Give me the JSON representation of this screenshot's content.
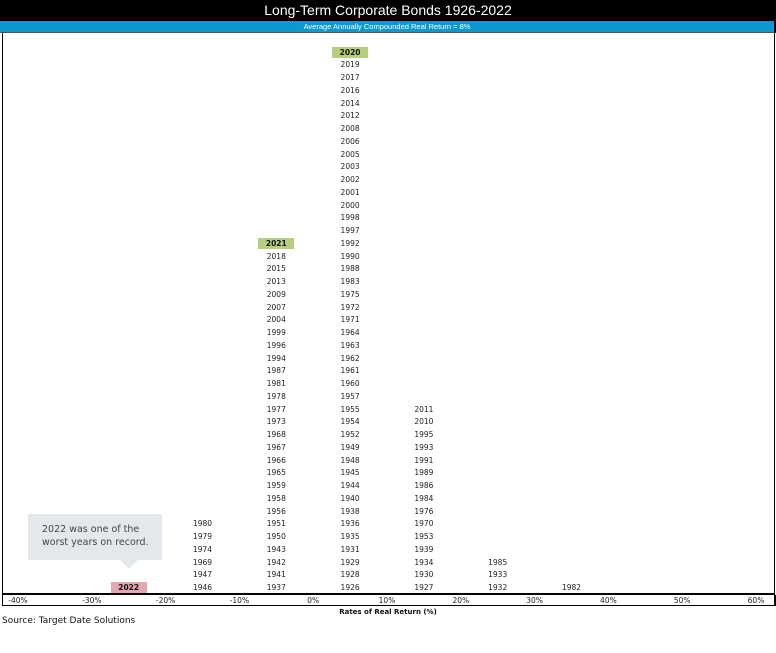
{
  "header": {
    "title": "Long-Term Corporate Bonds 1926-2022",
    "subtitle": "Average Annually Compounded Real Return = 8%"
  },
  "axis": {
    "ticks": [
      "-40%",
      "-30%",
      "-20%",
      "-10%",
      "0%",
      "10%",
      "20%",
      "30%",
      "40%",
      "50%",
      "60%"
    ],
    "title": "Rates of Real Return (%)"
  },
  "callout": {
    "line1": "2022 was one of the",
    "line2": "worst years on record."
  },
  "source": "Source: Target Date Solutions",
  "colors": {
    "title_bg": "#000000",
    "subtitle_bg": "#0a9ad0",
    "highlight_green": "#b5cf7e",
    "highlight_red": "#e4a8b0",
    "callout_bg": "#e3e8ec"
  },
  "chart_data": {
    "type": "histogram-stack",
    "title": "Long-Term Corporate Bonds 1926-2022",
    "subtitle": "Average Annually Compounded Real Return = 8%",
    "xlabel": "Rates of Real Return (%)",
    "ylabel": "",
    "xlim": [
      -40,
      60
    ],
    "bins": [
      {
        "range": "-30% to -20%",
        "count": 1,
        "years": [
          "2022"
        ],
        "highlight": {
          "2022": "red"
        }
      },
      {
        "range": "-20% to -10%",
        "count": 6,
        "years": [
          "1946",
          "1947",
          "1969",
          "1974",
          "1979",
          "1980"
        ]
      },
      {
        "range": "-10% to 0%",
        "count": 28,
        "years": [
          "1937",
          "1941",
          "1942",
          "1943",
          "1950",
          "1951",
          "1956",
          "1958",
          "1959",
          "1965",
          "1966",
          "1967",
          "1968",
          "1973",
          "1977",
          "1978",
          "1981",
          "1987",
          "1994",
          "1996",
          "1999",
          "2004",
          "2007",
          "2009",
          "2013",
          "2015",
          "2018",
          "2021"
        ],
        "highlight": {
          "2021": "green"
        }
      },
      {
        "range": "0% to 10%",
        "count": 43,
        "years": [
          "1926",
          "1928",
          "1929",
          "1931",
          "1935",
          "1936",
          "1938",
          "1940",
          "1944",
          "1945",
          "1948",
          "1949",
          "1952",
          "1954",
          "1955",
          "1957",
          "1960",
          "1961",
          "1962",
          "1963",
          "1964",
          "1971",
          "1972",
          "1975",
          "1983",
          "1988",
          "1990",
          "1992",
          "1997",
          "1998",
          "2000",
          "2001",
          "2002",
          "2003",
          "2005",
          "2006",
          "2008",
          "2012",
          "2014",
          "2016",
          "2017",
          "2019",
          "2020"
        ],
        "highlight": {
          "2020": "green"
        }
      },
      {
        "range": "10% to 20%",
        "count": 15,
        "years": [
          "1927",
          "1930",
          "1934",
          "1939",
          "1953",
          "1970",
          "1976",
          "1984",
          "1986",
          "1989",
          "1991",
          "1993",
          "1995",
          "2010",
          "2011"
        ]
      },
      {
        "range": "20% to 30%",
        "count": 3,
        "years": [
          "1932",
          "1933",
          "1985"
        ]
      },
      {
        "range": "30% to 40%",
        "count": 1,
        "years": [
          "1982"
        ]
      },
      {
        "range": "40% to 50%",
        "count": 0,
        "years": []
      },
      {
        "range": "50% to 60%",
        "count": 0,
        "years": []
      }
    ],
    "annotations": [
      "2022 was one of the worst years on record."
    ],
    "grid": false,
    "legend": null
  }
}
